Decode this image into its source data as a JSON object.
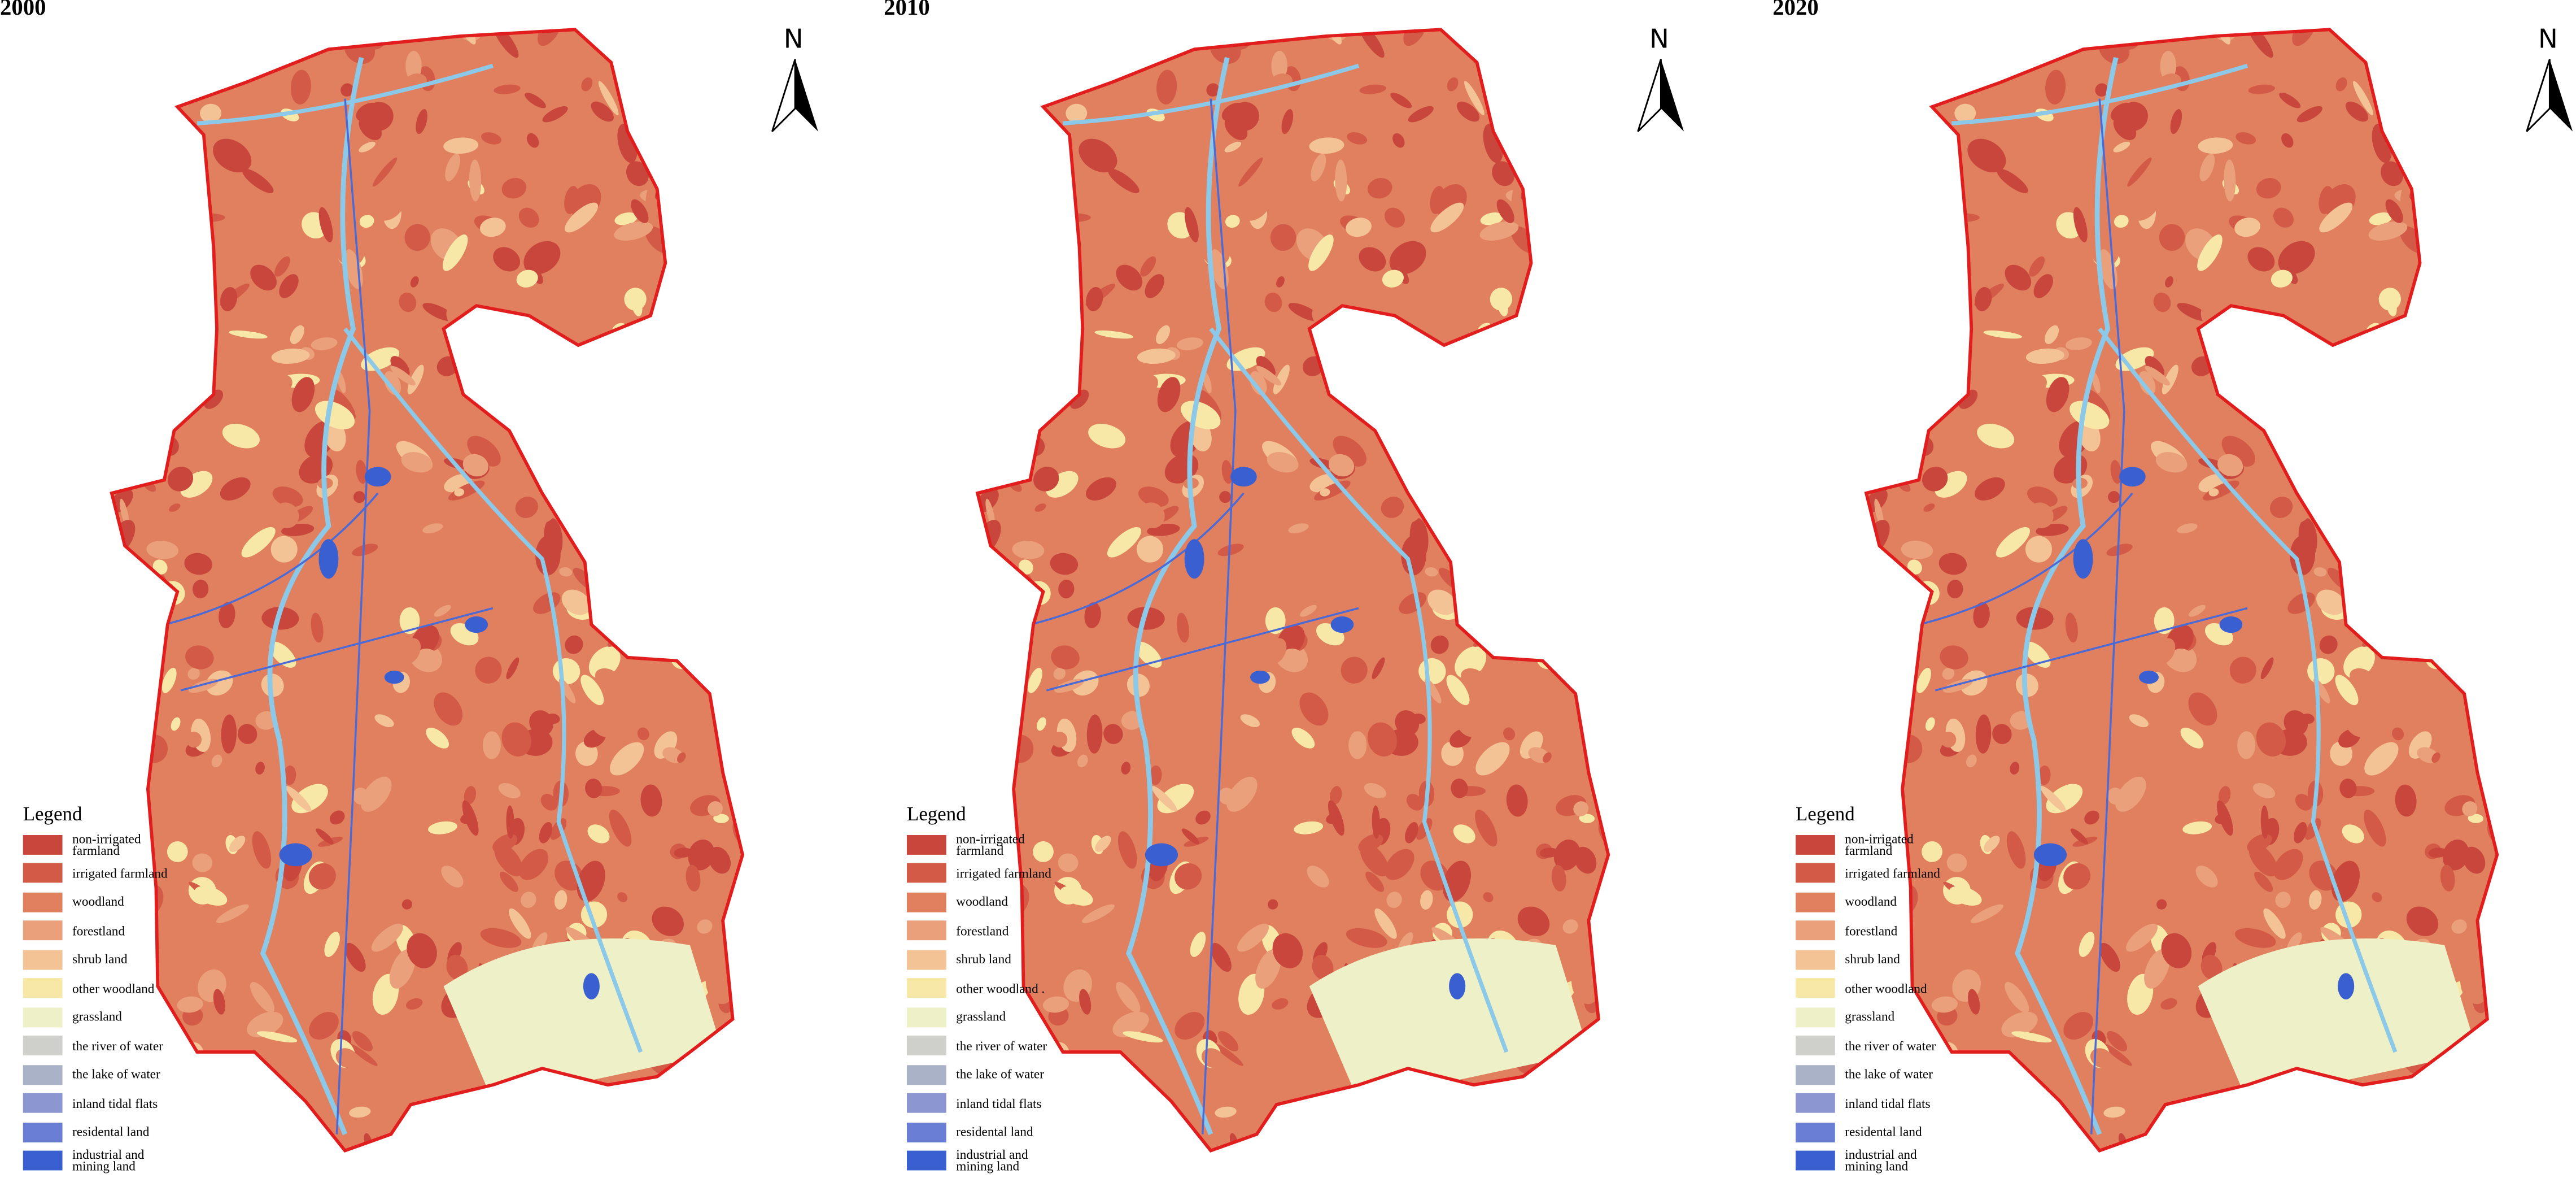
{
  "panels": [
    {
      "title": "2000",
      "north": "N",
      "legend": {
        "title": "Legend",
        "items": [
          {
            "label": "non-irrigated farmland",
            "color": "#c8463c"
          },
          {
            "label": "irrigated farmland",
            "color": "#d25a46"
          },
          {
            "label": "woodland",
            "color": "#e0805e"
          },
          {
            "label": "forestland",
            "color": "#eaa07a"
          },
          {
            "label": "shrub land",
            "color": "#f3c295"
          },
          {
            "label": "other woodland",
            "color": "#f8e8a8"
          },
          {
            "label": "grassland",
            "color": "#eef0c8"
          },
          {
            "label": "the river of water",
            "color": "#cfd0cc"
          },
          {
            "label": "the lake of water",
            "color": "#aab2c8"
          },
          {
            "label": "inland tidal flats",
            "color": "#8c96d0"
          },
          {
            "label": "residental land",
            "color": "#6a7ed6"
          },
          {
            "label": "industrial and mining land",
            "color": "#3a5fd0"
          }
        ]
      }
    },
    {
      "title": "2010",
      "north": "N",
      "legend": {
        "title": "Legend",
        "items": [
          {
            "label": "non-irrigated farmland",
            "color": "#c8463c"
          },
          {
            "label": "irrigated farmland",
            "color": "#d25a46"
          },
          {
            "label": "woodland",
            "color": "#e0805e"
          },
          {
            "label": "forestland",
            "color": "#eaa07a"
          },
          {
            "label": "shrub land",
            "color": "#f3c295"
          },
          {
            "label": "other woodland .",
            "color": "#f8e8a8"
          },
          {
            "label": "grassland",
            "color": "#eef0c8"
          },
          {
            "label": "the river of water",
            "color": "#cfd0cc"
          },
          {
            "label": "the lake of water",
            "color": "#aab2c8"
          },
          {
            "label": "inland tidal flats",
            "color": "#8c96d0"
          },
          {
            "label": "residental land",
            "color": "#6a7ed6"
          },
          {
            "label": "industrial and mining land",
            "color": "#3a5fd0"
          }
        ]
      }
    },
    {
      "title": "2020",
      "north": "N",
      "legend": {
        "title": "Legend",
        "items": [
          {
            "label": "non-irrigated farmland",
            "color": "#c8463c"
          },
          {
            "label": "irrigated farmland",
            "color": "#d25a46"
          },
          {
            "label": "woodland",
            "color": "#e0805e"
          },
          {
            "label": "forestland",
            "color": "#eaa07a"
          },
          {
            "label": "shrub land",
            "color": "#f3c295"
          },
          {
            "label": "other woodland",
            "color": "#f8e8a8"
          },
          {
            "label": "grassland",
            "color": "#eef0c8"
          },
          {
            "label": "the river of water",
            "color": "#cfd0cc"
          },
          {
            "label": "the lake of water",
            "color": "#aab2c8"
          },
          {
            "label": "inland tidal flats",
            "color": "#8c96d0"
          },
          {
            "label": "residental land",
            "color": "#6a7ed6"
          },
          {
            "label": "industrial and mining land",
            "color": "#3a5fd0"
          }
        ]
      }
    }
  ]
}
